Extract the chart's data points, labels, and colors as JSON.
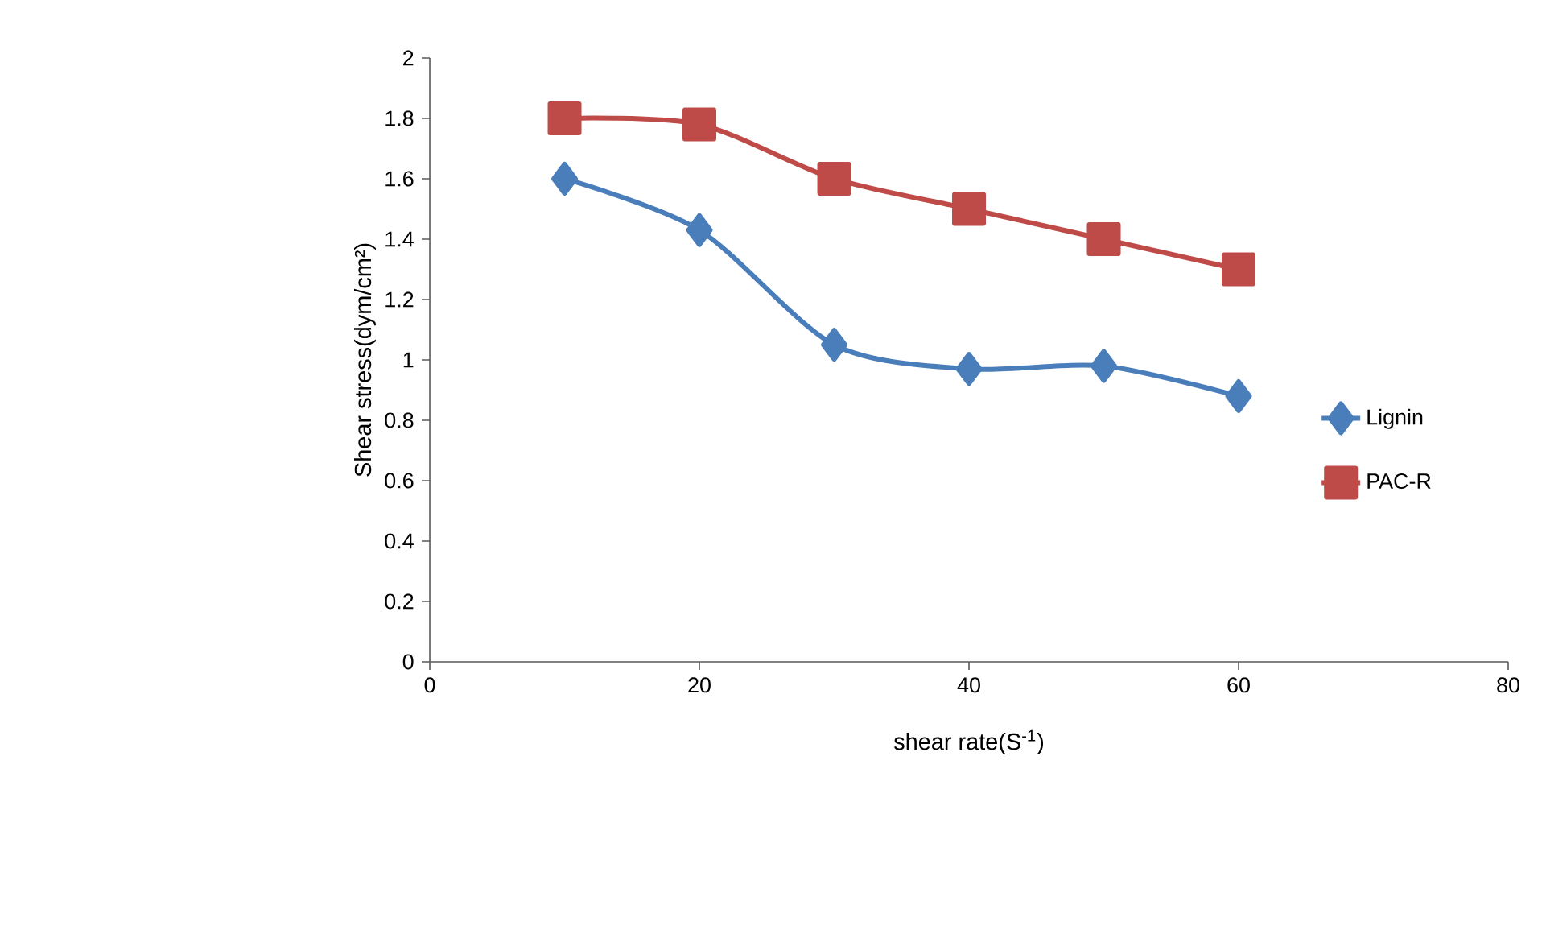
{
  "chart_data": {
    "type": "line",
    "xlabel": "shear rate(S$^{-1}$)",
    "ylabel": "Shear stress(dym/cm²)",
    "x": [
      10,
      20,
      30,
      40,
      50,
      60
    ],
    "series": [
      {
        "name": "Lignin",
        "color": "#4a7ebb",
        "marker": "diamond",
        "values": [
          1.6,
          1.43,
          1.05,
          0.97,
          0.98,
          0.88
        ]
      },
      {
        "name": "PAC-R",
        "color": "#be4b48",
        "marker": "square",
        "values": [
          1.8,
          1.78,
          1.6,
          1.5,
          1.4,
          1.3
        ]
      }
    ],
    "xlim": [
      0,
      80
    ],
    "xticks": [
      0,
      20,
      40,
      60,
      80
    ],
    "ylim": [
      0,
      2
    ],
    "yticks": [
      0,
      0.2,
      0.4,
      0.6,
      0.8,
      1,
      1.2,
      1.4,
      1.6,
      1.8,
      2
    ],
    "grid": false,
    "legend": "right",
    "line_style": "solid"
  }
}
